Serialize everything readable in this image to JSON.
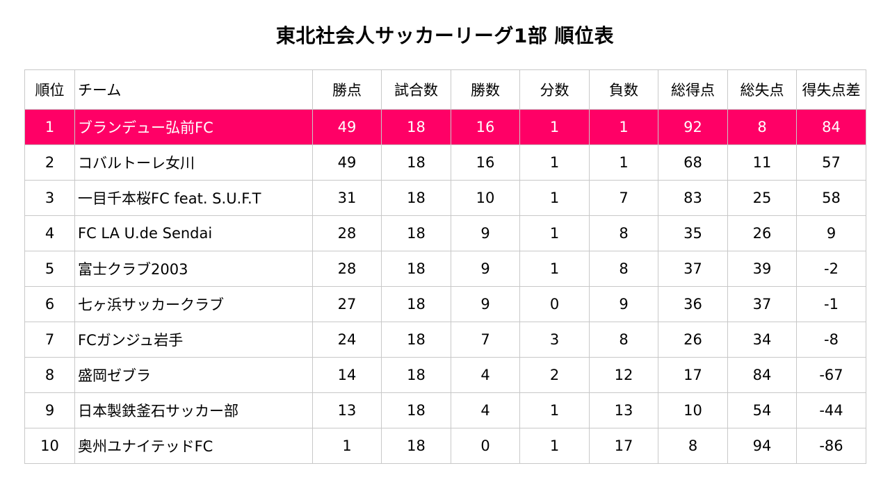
{
  "title": "東北社会人サッカーリーグ1部 順位表",
  "colors": {
    "highlight_row_bg": "#ff0066",
    "highlight_row_text": "#ffffff",
    "grid": "#c8c8c8"
  },
  "table": {
    "headers": [
      "順位",
      "チーム",
      "勝点",
      "試合数",
      "勝数",
      "分数",
      "負数",
      "総得点",
      "総失点",
      "得失点差"
    ],
    "rows": [
      [
        "1",
        "ブランデュー弘前FC",
        "49",
        "18",
        "16",
        "1",
        "1",
        "92",
        "8",
        "84"
      ],
      [
        "2",
        "コバルトーレ女川",
        "49",
        "18",
        "16",
        "1",
        "1",
        "68",
        "11",
        "57"
      ],
      [
        "3",
        "一目千本桜FC feat. S.U.F.T",
        "31",
        "18",
        "10",
        "1",
        "7",
        "83",
        "25",
        "58"
      ],
      [
        "4",
        "FC LA U.de Sendai",
        "28",
        "18",
        "9",
        "1",
        "8",
        "35",
        "26",
        "9"
      ],
      [
        "5",
        "富士クラブ2003",
        "28",
        "18",
        "9",
        "1",
        "8",
        "37",
        "39",
        "-2"
      ],
      [
        "6",
        "七ヶ浜サッカークラブ",
        "27",
        "18",
        "9",
        "0",
        "9",
        "36",
        "37",
        "-1"
      ],
      [
        "7",
        "FCガンジュ岩手",
        "24",
        "18",
        "7",
        "3",
        "8",
        "26",
        "34",
        "-8"
      ],
      [
        "8",
        "盛岡ゼブラ",
        "14",
        "18",
        "4",
        "2",
        "12",
        "17",
        "84",
        "-67"
      ],
      [
        "9",
        "日本製鉄釜石サッカー部",
        "13",
        "18",
        "4",
        "1",
        "13",
        "10",
        "54",
        "-44"
      ],
      [
        "10",
        "奥州ユナイテッドFC",
        "1",
        "18",
        "0",
        "1",
        "17",
        "8",
        "94",
        "-86"
      ]
    ]
  }
}
